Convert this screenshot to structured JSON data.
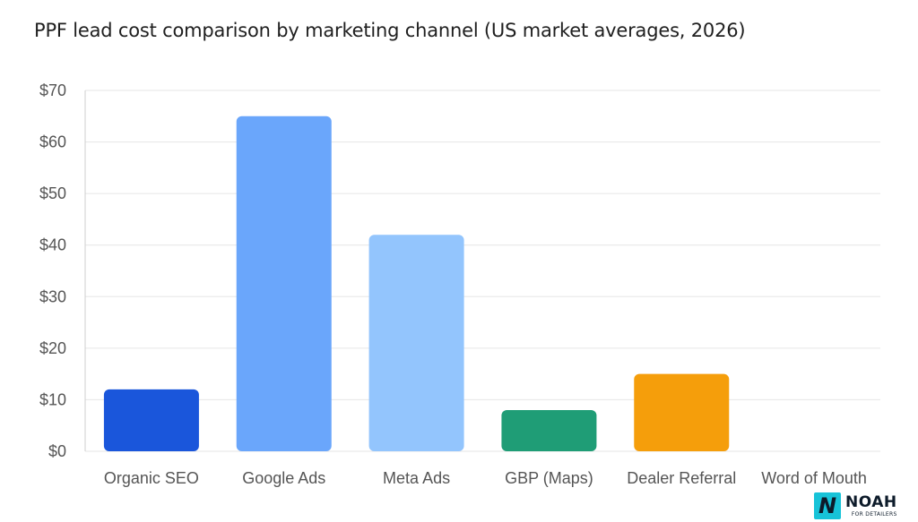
{
  "chart_data": {
    "type": "bar",
    "title": "PPF lead cost comparison by marketing channel (US market averages, 2026)",
    "categories": [
      "Organic SEO",
      "Google Ads",
      "Meta Ads",
      "GBP (Maps)",
      "Dealer Referral",
      "Word of Mouth"
    ],
    "values": [
      12,
      65,
      42,
      8,
      15,
      0
    ],
    "colors": [
      "#1a56db",
      "#6aa6fb",
      "#93c5fd",
      "#1f9d76",
      "#f59e0b",
      "#cccccc"
    ],
    "ylim": [
      0,
      70
    ],
    "yticks": [
      0,
      10,
      20,
      30,
      40,
      50,
      60,
      70
    ],
    "ytick_labels": [
      "$0",
      "$10",
      "$20",
      "$30",
      "$40",
      "$50",
      "$60",
      "$70"
    ],
    "xlabel": "",
    "ylabel": "",
    "grid": true
  },
  "logo": {
    "mark": "N",
    "name": "NOAH",
    "sub": "FOR DETAILERS"
  }
}
